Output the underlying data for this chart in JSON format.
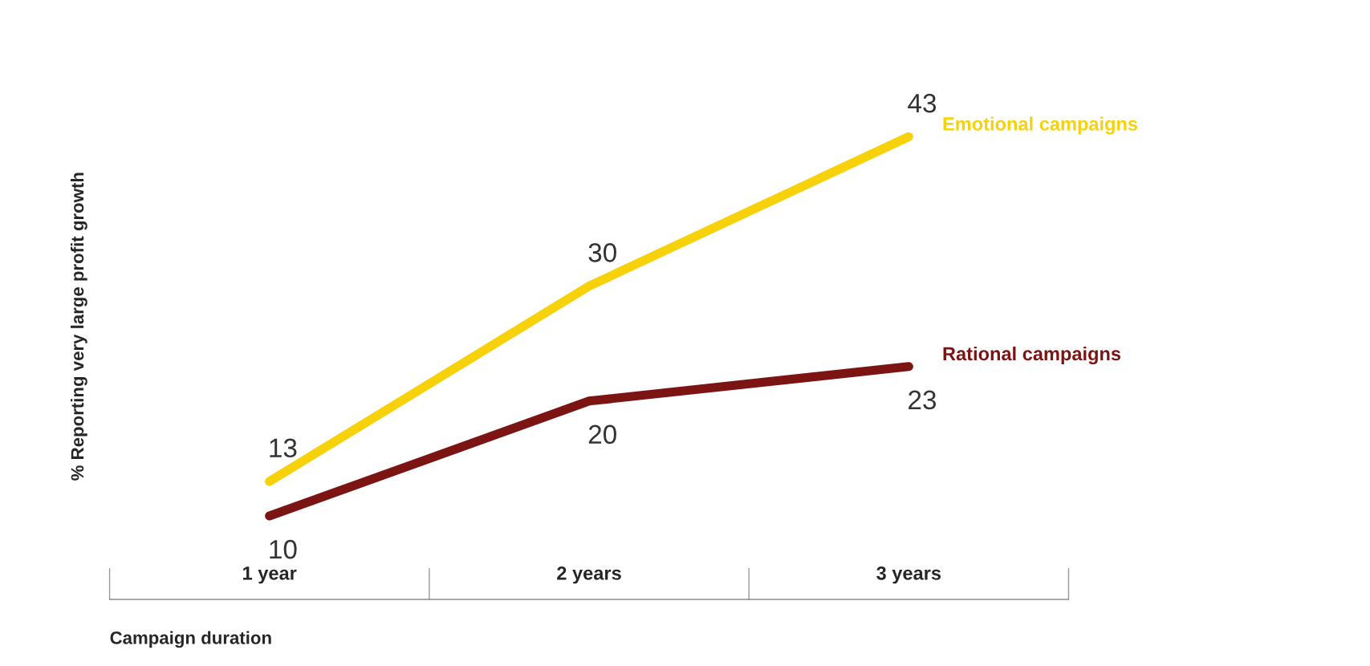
{
  "chart_data": {
    "type": "line",
    "xlabel": "Campaign duration",
    "ylabel": "% Reporting very large profit growth",
    "categories": [
      "1 year",
      "2 years",
      "3 years"
    ],
    "series": [
      {
        "name": "Emotional campaigns",
        "color": "#f7d10a",
        "values": [
          13,
          30,
          43
        ]
      },
      {
        "name": "Rational campaigns",
        "color": "#7d1414",
        "values": [
          10,
          20,
          23
        ]
      }
    ],
    "data_labels": true,
    "legend": false,
    "grid": false,
    "marker": "none",
    "line_style": "solid"
  }
}
